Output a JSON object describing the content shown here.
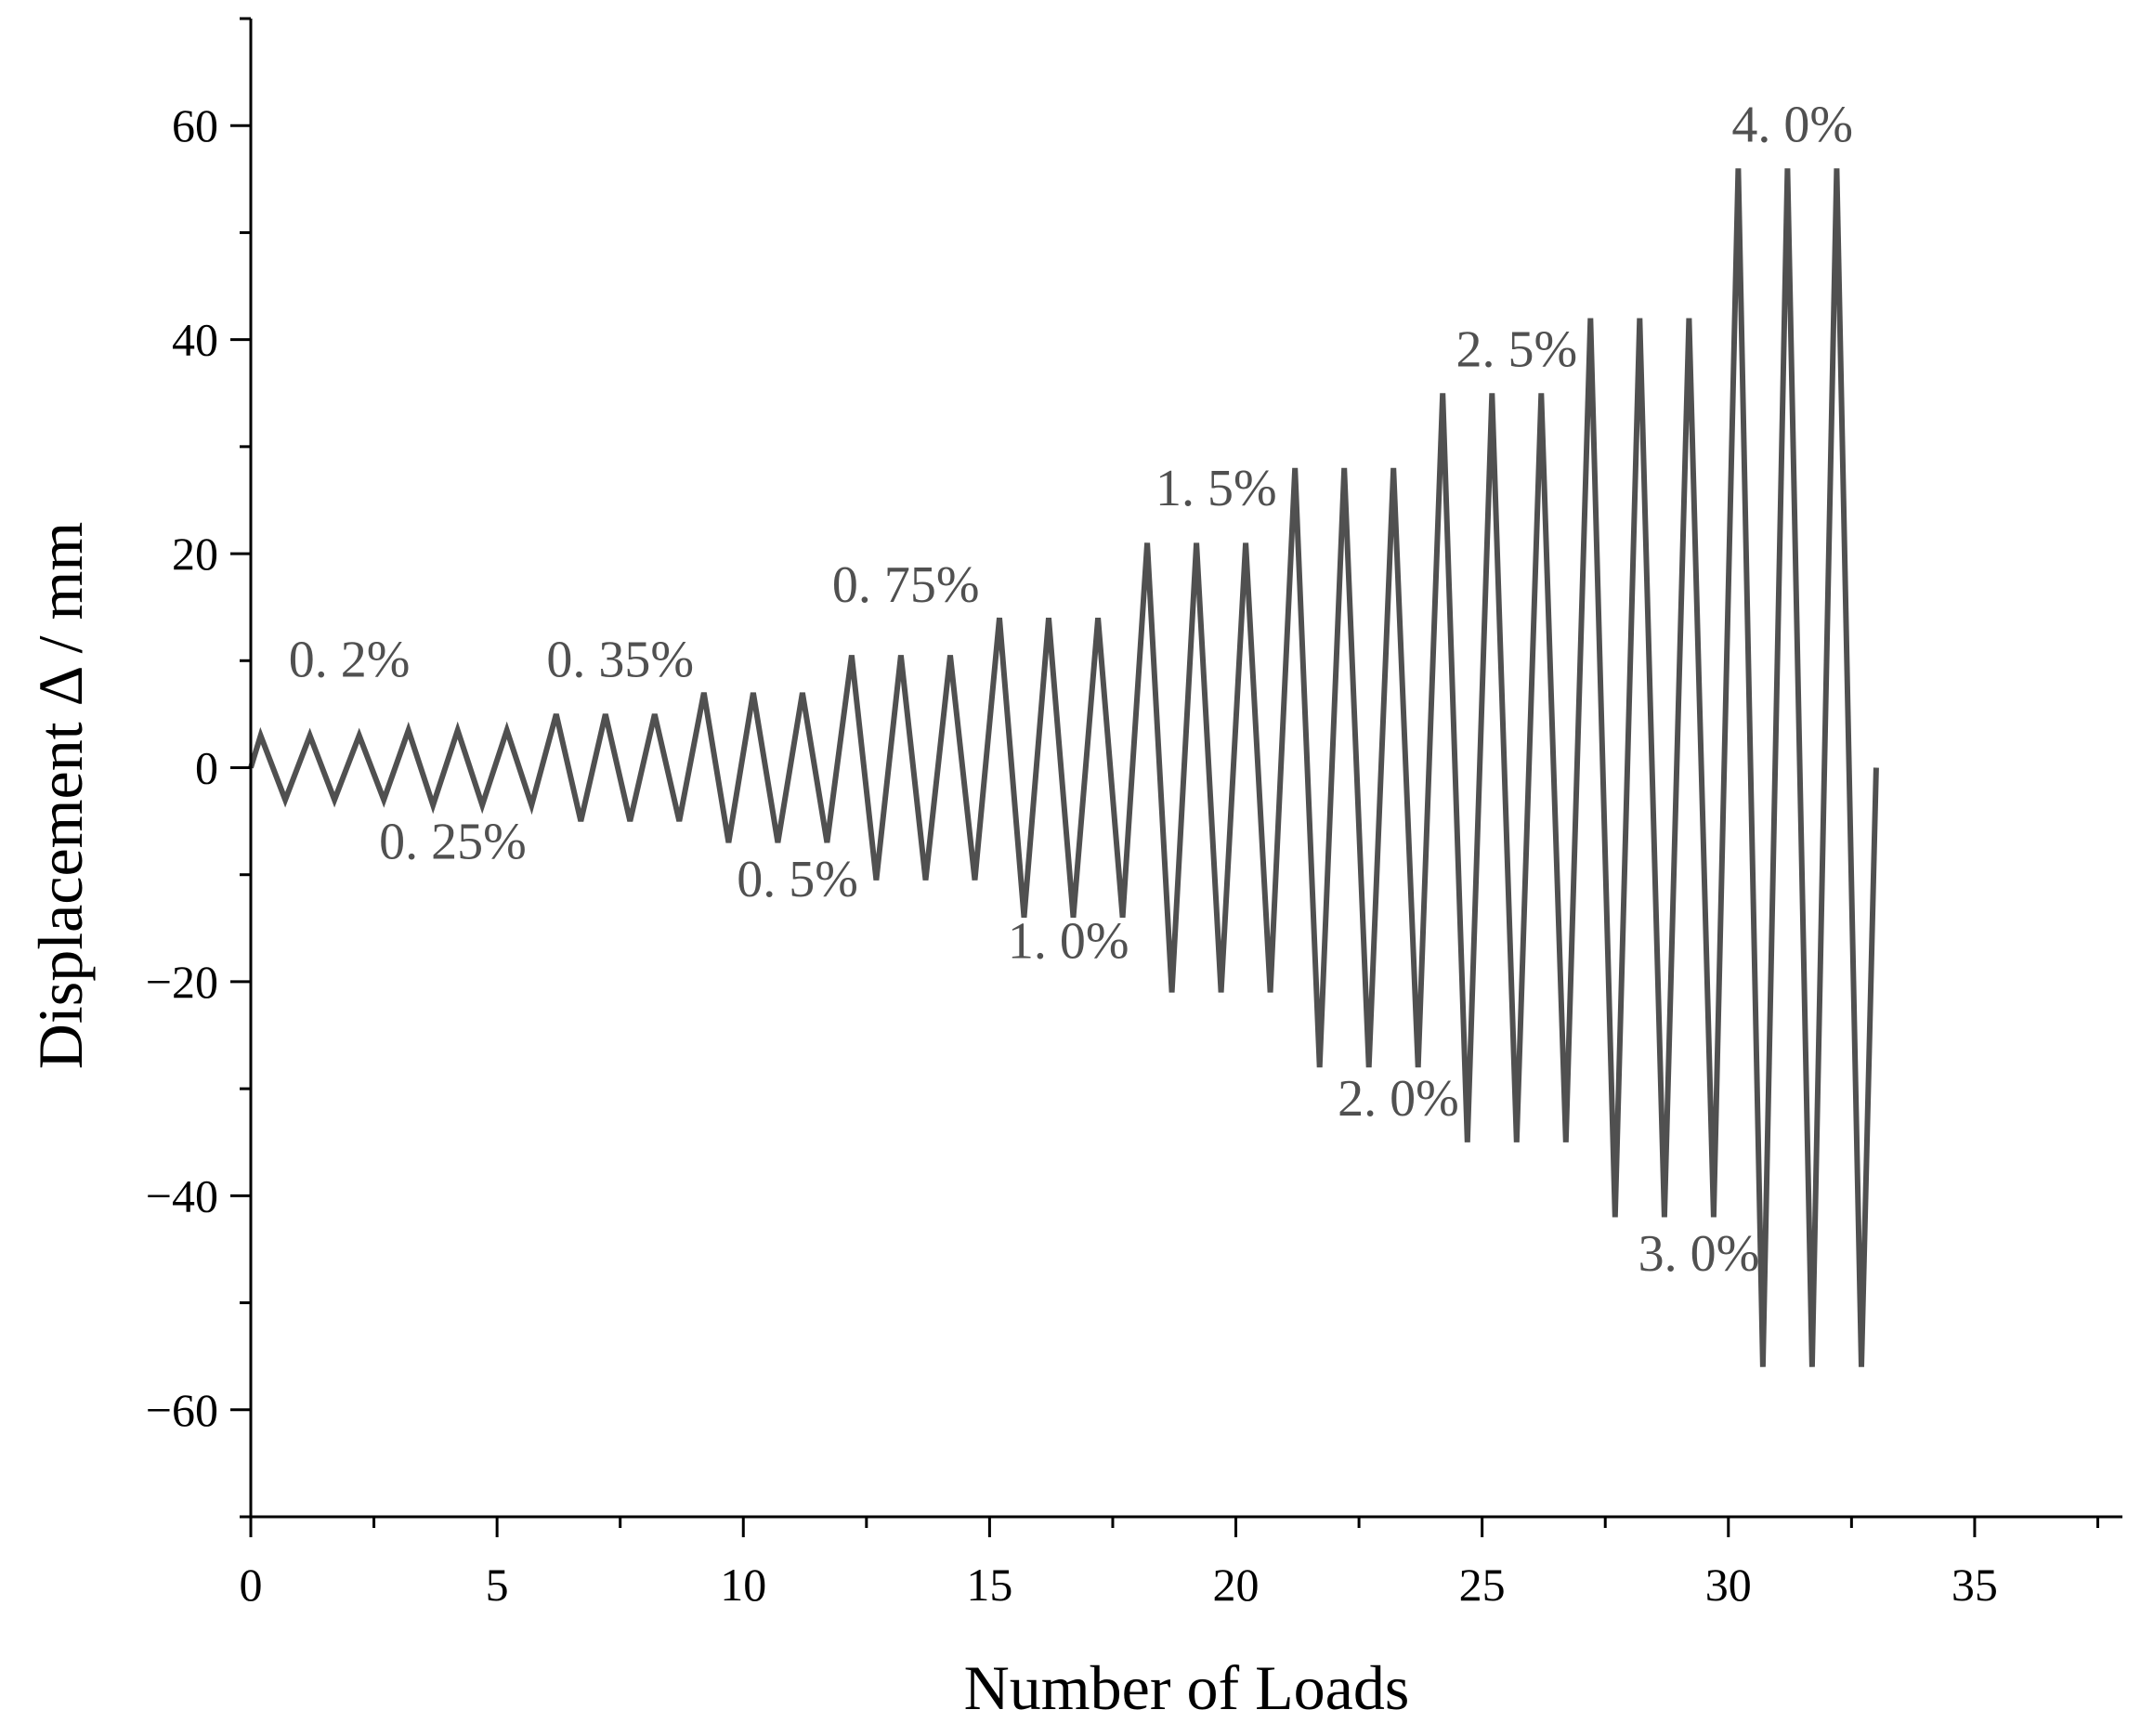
{
  "chart_data": {
    "type": "line",
    "xlabel": "Number of Loads",
    "ylabel": "Displacement Δ / mm",
    "xlim": [
      0,
      38
    ],
    "ylim": [
      -70,
      70
    ],
    "xticks": [
      0,
      5,
      10,
      15,
      20,
      25,
      30,
      35
    ],
    "yticks": [
      -60,
      -40,
      -20,
      0,
      20,
      40,
      60
    ],
    "xtick_labels": [
      "0",
      "5",
      "10",
      "15",
      "20",
      "25",
      "30",
      "35"
    ],
    "ytick_labels": [
      "−60",
      "−40",
      "−20",
      "0",
      "20",
      "40",
      "60"
    ],
    "grid": false,
    "line_color": "#505050",
    "series": [
      {
        "x": [
          0,
          0.2,
          0.7,
          1.2,
          1.7,
          2.2,
          2.7,
          3.2,
          3.7,
          4.2,
          4.7,
          5.2,
          5.7,
          6.2,
          6.7,
          7.2,
          7.7,
          8.2,
          8.7,
          9.2,
          9.7,
          10.2,
          10.7,
          11.2,
          11.7,
          12.2,
          12.7,
          13.2,
          13.7,
          14.2,
          14.7,
          15.2,
          15.7,
          16.2,
          16.7,
          17.2,
          17.7,
          18.2,
          18.7,
          19.2,
          19.7,
          20.2,
          20.7,
          21.2,
          21.7,
          22.2,
          22.7,
          23.2,
          23.7,
          24.2,
          24.7,
          25.2,
          25.7,
          26.2,
          26.7,
          27.2,
          27.7,
          28.2,
          28.7,
          29.2,
          29.7,
          30.2,
          30.7,
          31.2,
          31.7,
          32.2,
          32.7,
          33.0
        ],
        "y": [
          0,
          3,
          -3,
          3,
          -3,
          3,
          -3,
          3.5,
          -3.5,
          3.5,
          -3.5,
          3.5,
          -3.5,
          5,
          -5,
          5,
          -5,
          5,
          -5,
          7,
          -7,
          7,
          -7,
          7,
          -7,
          10.5,
          -10.5,
          10.5,
          -10.5,
          10.5,
          -10.5,
          14,
          -14,
          14,
          -14,
          14,
          -14,
          21,
          -21,
          21,
          -21,
          21,
          -21,
          28,
          -28,
          28,
          -28,
          28,
          -28,
          35,
          -35,
          35,
          -35,
          35,
          -35,
          42,
          -42,
          42,
          -42,
          42,
          -42,
          56,
          -56,
          56,
          -56,
          56,
          -56,
          0
        ]
      }
    ],
    "annotations": [
      {
        "text": "0. 2%",
        "x": 2.0,
        "y": 8.5
      },
      {
        "text": "0. 25%",
        "x": 4.1,
        "y": -8.5
      },
      {
        "text": "0. 35%",
        "x": 7.5,
        "y": 8.5
      },
      {
        "text": "0. 5%",
        "x": 11.1,
        "y": -12.0
      },
      {
        "text": "0. 75%",
        "x": 13.3,
        "y": 15.5
      },
      {
        "text": "1. 0%",
        "x": 16.6,
        "y": -17.8
      },
      {
        "text": "1. 5%",
        "x": 19.6,
        "y": 24.5
      },
      {
        "text": "2. 0%",
        "x": 23.3,
        "y": -32.5
      },
      {
        "text": "2. 5%",
        "x": 25.7,
        "y": 37.5
      },
      {
        "text": "3. 0%",
        "x": 29.4,
        "y": -47.0
      },
      {
        "text": "4. 0%",
        "x": 31.3,
        "y": 58.5
      }
    ]
  }
}
